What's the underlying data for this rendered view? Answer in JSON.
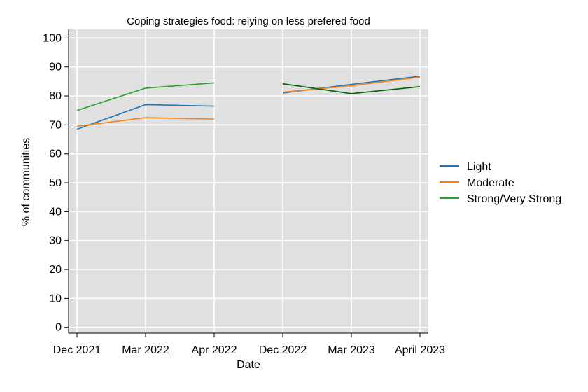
{
  "chart_data": {
    "type": "line",
    "title": "Coping strategies food: relying on less prefered food",
    "xlabel": "Date",
    "ylabel": "% of communities",
    "categories": [
      "Dec 2021",
      "Mar 2022",
      "Apr 2022",
      "Dec 2022",
      "Mar 2023",
      "April 2023"
    ],
    "ylim": [
      -2,
      103
    ],
    "yticks": [
      0,
      10,
      20,
      30,
      40,
      50,
      60,
      70,
      80,
      90,
      100
    ],
    "grid": true,
    "legend_position": "right",
    "series": [
      {
        "name": "Light",
        "color": "#1f77b4",
        "values": [
          68.5,
          77.0,
          76.5,
          81.0,
          84.0,
          86.8
        ]
      },
      {
        "name": "Moderate",
        "color": "#ff7f0e",
        "values": [
          69.5,
          72.5,
          72.0,
          81.3,
          83.5,
          86.5
        ]
      },
      {
        "name": "Strong/Very Strong",
        "color": "#2ca02c",
        "values": [
          75.0,
          82.7,
          84.5,
          84.2,
          80.8,
          83.2
        ]
      }
    ],
    "segments": [
      {
        "series": [
          0,
          1,
          2
        ],
        "from": 0,
        "to": 2
      },
      {
        "series": [
          0,
          1
        ],
        "from": 3,
        "to": 5
      },
      {
        "series": [
          2
        ],
        "from": 3,
        "to": 5,
        "color": "#006400"
      }
    ]
  }
}
